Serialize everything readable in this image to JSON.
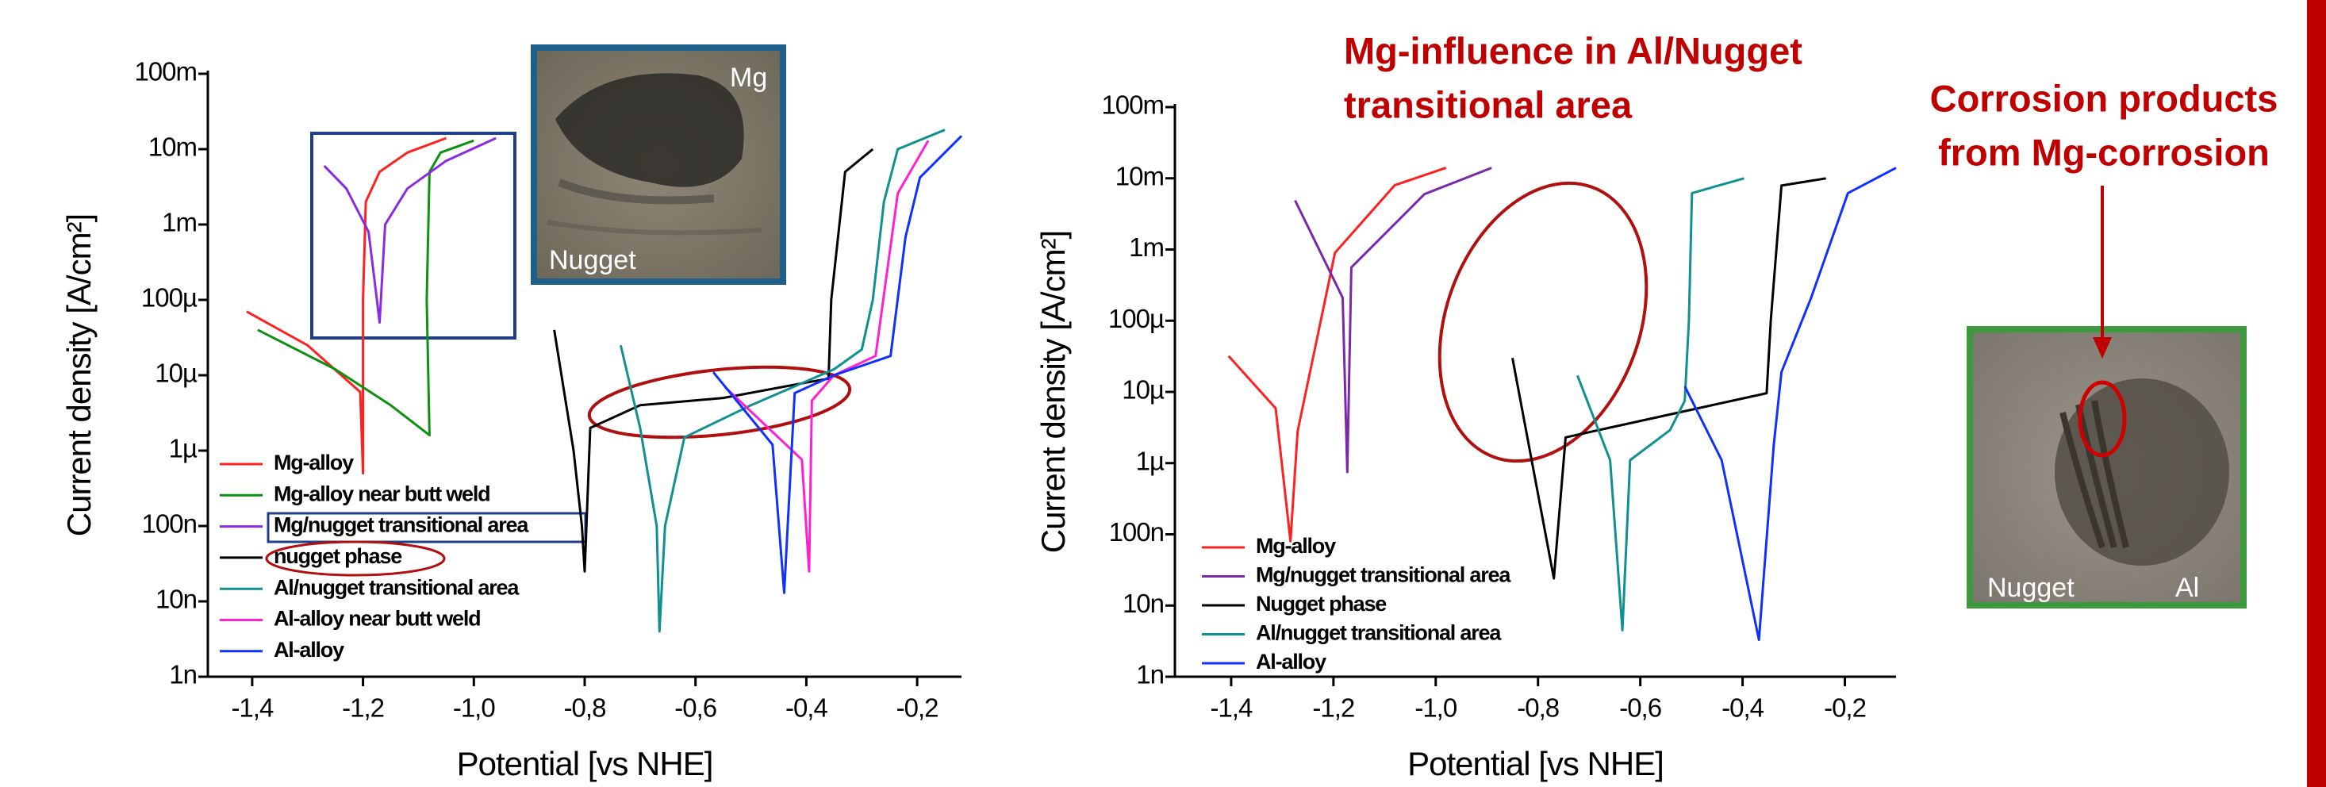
{
  "chart_data": [
    {
      "type": "line",
      "yscale": "log",
      "xlabel": "Potential [vs NHE]",
      "ylabel": "Current density [A/cm²]",
      "xlim": [
        -1.48,
        -0.12
      ],
      "ylim": [
        1e-09,
        0.1
      ],
      "xticks": [
        {
          "value": -1.4,
          "label": "-1,4"
        },
        {
          "value": -1.2,
          "label": "-1,2"
        },
        {
          "value": -1.0,
          "label": "-1,0"
        },
        {
          "value": -0.8,
          "label": "-0,8"
        },
        {
          "value": -0.6,
          "label": "-0,6"
        },
        {
          "value": -0.4,
          "label": "-0,4"
        },
        {
          "value": -0.2,
          "label": "-0,2"
        }
      ],
      "yticks": [
        {
          "value": 1e-09,
          "label": "1n"
        },
        {
          "value": 1e-08,
          "label": "10n"
        },
        {
          "value": 1e-07,
          "label": "100n"
        },
        {
          "value": 1e-06,
          "label": "1µ"
        },
        {
          "value": 1e-05,
          "label": "10µ"
        },
        {
          "value": 0.0001,
          "label": "100µ"
        },
        {
          "value": 0.001,
          "label": "1m"
        },
        {
          "value": 0.01,
          "label": "10m"
        },
        {
          "value": 0.1,
          "label": "100m"
        }
      ],
      "legend": "lower left",
      "photo_labels": [
        "Mg",
        "Nugget"
      ],
      "series": [
        {
          "name": "Mg-alloy",
          "color": "#ff2020",
          "x": [
            -1.41,
            -1.3,
            -1.205,
            -1.2,
            -1.2,
            -1.195,
            -1.17,
            -1.12,
            -1.05
          ],
          "values": [
            7e-05,
            2.5e-05,
            6e-06,
            5e-07,
            0.0001,
            0.002,
            0.005,
            0.009,
            0.014
          ]
        },
        {
          "name": "Mg-alloy near butt weld",
          "color": "#109010",
          "x": [
            -1.39,
            -1.25,
            -1.15,
            -1.08,
            -1.085,
            -1.08,
            -1.06,
            -1.0
          ],
          "values": [
            4e-05,
            1.2e-05,
            4e-06,
            1.6e-06,
            0.0001,
            0.005,
            0.009,
            0.013
          ]
        },
        {
          "name": "Mg/nugget transitional area",
          "color": "#8a2be2",
          "x": [
            -1.27,
            -1.23,
            -1.19,
            -1.175,
            -1.17,
            -1.16,
            -1.12,
            -1.05,
            -0.96
          ],
          "values": [
            0.006,
            0.003,
            0.0008,
            0.0001,
            5e-05,
            0.001,
            0.003,
            0.007,
            0.014
          ]
        },
        {
          "name": "nugget phase",
          "color": "#000000",
          "x": [
            -0.855,
            -0.82,
            -0.805,
            -0.8,
            -0.79,
            -0.7,
            -0.55,
            -0.4,
            -0.36,
            -0.355,
            -0.33,
            -0.28
          ],
          "values": [
            4e-05,
            1e-06,
            1e-07,
            2.5e-08,
            2e-06,
            4e-06,
            5e-06,
            8e-06,
            9e-06,
            0.0001,
            0.005,
            0.01
          ]
        },
        {
          "name": "Al/nugget transitional area",
          "color": "#109090",
          "x": [
            -0.735,
            -0.7,
            -0.67,
            -0.665,
            -0.655,
            -0.62,
            -0.5,
            -0.35,
            -0.3,
            -0.28,
            -0.26,
            -0.235,
            -0.15
          ],
          "values": [
            2.5e-05,
            2e-06,
            1e-07,
            4e-09,
            1e-07,
            1.5e-06,
            4e-06,
            1.2e-05,
            2.2e-05,
            0.0001,
            0.002,
            0.01,
            0.018
          ]
        },
        {
          "name": "Al-alloy near butt weld",
          "color": "#ff20d0",
          "x": [
            -0.547,
            -0.408,
            -0.395,
            -0.39,
            -0.35,
            -0.275,
            -0.235,
            -0.18
          ],
          "values": [
            7e-06,
            7.6e-07,
            2.5e-08,
            4.6e-06,
            1e-05,
            1.8e-05,
            0.0026,
            0.013
          ]
        },
        {
          "name": "Al-alloy",
          "color": "#1030ff",
          "x": [
            -0.568,
            -0.461,
            -0.44,
            -0.421,
            -0.35,
            -0.248,
            -0.221,
            -0.195,
            -0.12
          ],
          "values": [
            1.1e-05,
            1.2e-06,
            1.3e-08,
            5.8e-06,
            1e-05,
            1.8e-05,
            0.00068,
            0.0042,
            0.015
          ]
        }
      ]
    },
    {
      "type": "line",
      "yscale": "log",
      "xlabel": "Potential [vs NHE]",
      "ylabel": "Current density [A/cm²]",
      "xlim": [
        -1.51,
        -0.1
      ],
      "ylim": [
        1e-09,
        0.1
      ],
      "xticks": [
        {
          "value": -1.4,
          "label": "-1,4"
        },
        {
          "value": -1.2,
          "label": "-1,2"
        },
        {
          "value": -1.0,
          "label": "-1,0"
        },
        {
          "value": -0.8,
          "label": "-0,8"
        },
        {
          "value": -0.6,
          "label": "-0,6"
        },
        {
          "value": -0.4,
          "label": "-0,4"
        },
        {
          "value": -0.2,
          "label": "-0,2"
        }
      ],
      "yticks": [
        {
          "value": 1e-09,
          "label": "1n"
        },
        {
          "value": 1e-08,
          "label": "10n"
        },
        {
          "value": 1e-07,
          "label": "100n"
        },
        {
          "value": 1e-06,
          "label": "1µ"
        },
        {
          "value": 1e-05,
          "label": "10µ"
        },
        {
          "value": 0.0001,
          "label": "100µ"
        },
        {
          "value": 0.001,
          "label": "1m"
        },
        {
          "value": 0.01,
          "label": "10m"
        },
        {
          "value": 0.1,
          "label": "100m"
        }
      ],
      "legend": "lower left",
      "annotation": [
        "Mg-influence in Al/Nugget",
        "transitional area"
      ],
      "callout": [
        "Corrosion products",
        "from Mg-corrosion"
      ],
      "photo_labels": [
        "Nugget",
        "Al"
      ],
      "series": [
        {
          "name": "Mg-alloy",
          "color": "#ff2020",
          "x": [
            -1.405,
            -1.313,
            -1.284,
            -1.27,
            -1.197,
            -1.08,
            -0.98
          ],
          "values": [
            3.2e-05,
            5.9e-06,
            8e-08,
            2.8e-06,
            0.0009,
            0.008,
            0.014
          ]
        },
        {
          "name": "Mg/nugget transitional area",
          "color": "#7a28a8",
          "x": [
            -1.275,
            -1.182,
            -1.173,
            -1.165,
            -1.022,
            -0.891
          ],
          "values": [
            0.0049,
            0.00021,
            7.5e-07,
            0.00056,
            0.006,
            0.014
          ]
        },
        {
          "name": "Nugget phase",
          "color": "#000000",
          "x": [
            -0.85,
            -0.769,
            -0.746,
            -0.353,
            -0.345,
            -0.324,
            -0.237
          ],
          "values": [
            3e-05,
            2.4e-08,
            2.3e-06,
            9.6e-06,
            0.0001,
            0.0079,
            0.01
          ]
        },
        {
          "name": "Al/nugget transitional area",
          "color": "#109090",
          "x": [
            -0.723,
            -0.659,
            -0.635,
            -0.62,
            -0.542,
            -0.513,
            -0.505,
            -0.499,
            -0.397
          ],
          "values": [
            1.7e-05,
            1.1e-06,
            4.5e-09,
            1.1e-06,
            2.9e-06,
            7.5e-06,
            0.0001,
            0.0062,
            0.01
          ]
        },
        {
          "name": "Al-alloy",
          "color": "#1030ff",
          "x": [
            -0.513,
            -0.441,
            -0.368,
            -0.339,
            -0.324,
            -0.266,
            -0.194,
            -0.1
          ],
          "values": [
            1.2e-05,
            1.1e-06,
            3.3e-09,
            1.8e-06,
            1.9e-05,
            0.00021,
            0.0062,
            0.014
          ]
        }
      ]
    }
  ]
}
